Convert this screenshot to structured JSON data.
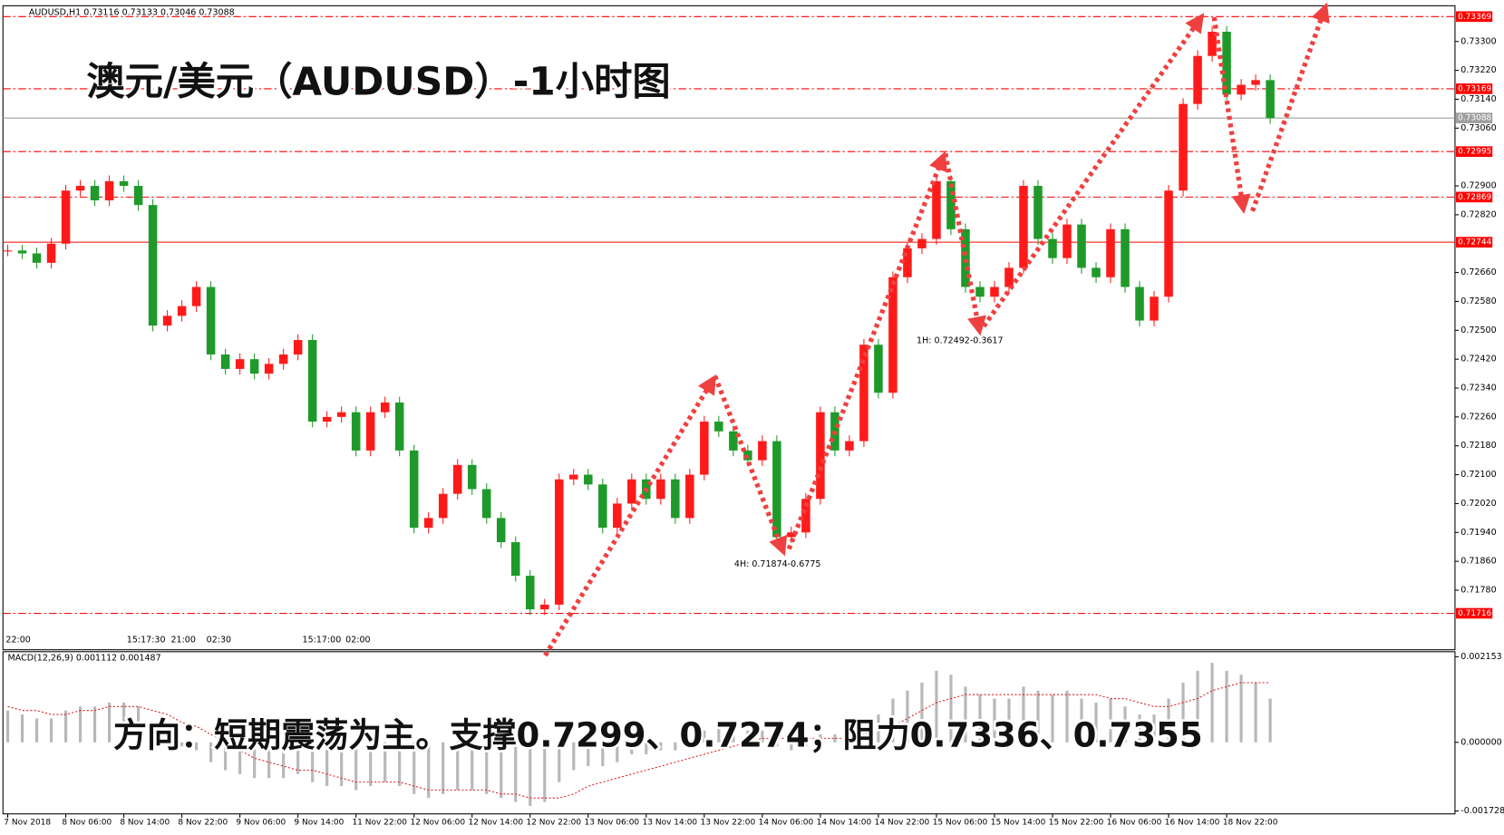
{
  "chart_data": {
    "type": "candlestick",
    "header": "AUDUSD,H1  0.73116 0.73133 0.73046 0.73088",
    "title": "澳元/美元（AUDUSD）-1小时图",
    "subtitle": "方向：短期震荡为主。支撑0.7299、0.7274；阻力0.7336、0.7355",
    "annotations": [
      "1H: 0.72492-0.3617",
      "4H: 0.71874-0.6775"
    ],
    "time_markers": [
      "22:00",
      "15:17:30",
      "21:00",
      "02:30",
      "15:17:00",
      "02:00"
    ],
    "up_color": "#ff1a1a",
    "down_color": "#1f9a2a",
    "categories": [
      "7 Nov 2018",
      null,
      null,
      null,
      "8 Nov 06:00",
      null,
      null,
      null,
      "8 Nov 14:00",
      null,
      null,
      null,
      "8 Nov 22:00",
      null,
      null,
      null,
      "9 Nov 06:00",
      null,
      null,
      null,
      "9 Nov 14:00",
      null,
      null,
      null,
      "11 Nov 22:00",
      null,
      null,
      null,
      "12 Nov 06:00",
      null,
      null,
      null,
      "12 Nov 14:00",
      null,
      null,
      null,
      "12 Nov 22:00",
      null,
      null,
      null,
      "13 Nov 06:00",
      null,
      null,
      null,
      "13 Nov 14:00",
      null,
      null,
      null,
      "13 Nov 22:00",
      null,
      null,
      null,
      "14 Nov 06:00",
      null,
      null,
      null,
      "14 Nov 14:00",
      null,
      null,
      null,
      "14 Nov 22:00",
      null,
      null,
      null,
      "15 Nov 06:00",
      null,
      null,
      null,
      "15 Nov 14:00",
      null,
      null,
      null,
      "15 Nov 22:00",
      null,
      null,
      null,
      "16 Nov 06:00",
      null,
      null,
      null,
      "16 Nov 14:00",
      null,
      null,
      null,
      "18 Nov 22:00",
      null,
      null,
      null
    ],
    "close": [
      0.72721,
      0.72713,
      0.72687,
      0.7274,
      0.72887,
      0.729,
      0.7286,
      0.72913,
      0.729,
      0.72847,
      0.72513,
      0.7254,
      0.72567,
      0.7262,
      0.72433,
      0.72393,
      0.7242,
      0.7238,
      0.72407,
      0.72433,
      0.72473,
      0.72247,
      0.7226,
      0.72273,
      0.72167,
      0.72273,
      0.723,
      0.72167,
      0.71953,
      0.7198,
      0.72047,
      0.72127,
      0.7206,
      0.7198,
      0.71913,
      0.7182,
      0.71727,
      0.7174,
      0.72087,
      0.721,
      0.72073,
      0.71953,
      0.7202,
      0.72087,
      0.72033,
      0.72087,
      0.7198,
      0.721,
      0.72247,
      0.7222,
      0.72167,
      0.7214,
      0.72193,
      0.71927,
      0.7194,
      0.72033,
      0.72273,
      0.72167,
      0.72193,
      0.7246,
      0.72327,
      0.72647,
      0.72727,
      0.72753,
      0.72913,
      0.7278,
      0.7262,
      0.72593,
      0.7262,
      0.72673,
      0.729,
      0.72753,
      0.727,
      0.72793,
      0.72673,
      0.72647,
      0.7278,
      0.7262,
      0.72527,
      0.72593,
      0.72887,
      0.73127,
      0.7326,
      0.73327,
      0.73153,
      0.7318,
      0.73193,
      0.73088
    ],
    "ylim": [
      0.71615,
      0.73399
    ],
    "yticks": [
      {
        "value": 0.733,
        "label": "0.73300"
      },
      {
        "value": 0.7322,
        "label": "0.73220"
      },
      {
        "value": 0.7314,
        "label": "0.73140"
      },
      {
        "value": 0.7306,
        "label": "0.73060"
      },
      {
        "value": 0.729,
        "label": "0.72900"
      },
      {
        "value": 0.7282,
        "label": "0.72820"
      },
      {
        "value": 0.7266,
        "label": "0.72660"
      },
      {
        "value": 0.7258,
        "label": "0.72580"
      },
      {
        "value": 0.725,
        "label": "0.72500"
      },
      {
        "value": 0.7242,
        "label": "0.72420"
      },
      {
        "value": 0.7234,
        "label": "0.72340"
      },
      {
        "value": 0.7226,
        "label": "0.72260"
      },
      {
        "value": 0.7218,
        "label": "0.72180"
      },
      {
        "value": 0.721,
        "label": "0.72100"
      },
      {
        "value": 0.7202,
        "label": "0.72020"
      },
      {
        "value": 0.7194,
        "label": "0.71940"
      },
      {
        "value": 0.7186,
        "label": "0.71860"
      },
      {
        "value": 0.7178,
        "label": "0.71780"
      }
    ],
    "levels": [
      {
        "value": 0.73369,
        "style": "dashdot",
        "color": "#ff0000"
      },
      {
        "value": 0.73169,
        "style": "dashdot",
        "color": "#ff0000"
      },
      {
        "value": 0.73088,
        "style": "solid",
        "color": "#a0a0a0"
      },
      {
        "value": 0.72995,
        "style": "dashdot",
        "color": "#ff0000"
      },
      {
        "value": 0.72869,
        "style": "dashdot",
        "color": "#ff0000"
      },
      {
        "value": 0.72744,
        "style": "solid",
        "color": "#ff0000"
      },
      {
        "value": 0.71716,
        "style": "dashdot",
        "color": "#ff0000"
      }
    ],
    "indicator": {
      "title": "MACD(12,26,9) 0.001112 0.001487",
      "hist_color": "#b8b8b8",
      "signal_color": "#e02020",
      "macd": [
        0.0008,
        0.0007,
        0.0006,
        0.0006,
        0.0008,
        0.0009,
        0.0009,
        0.001,
        0.001,
        0.0009,
        0.0004,
        0.0001,
        -0.0001,
        -0.0002,
        -0.0005,
        -0.0007,
        -0.0008,
        -0.0009,
        -0.0009,
        -0.0009,
        -0.0008,
        -0.001,
        -0.0011,
        -0.0011,
        -0.0012,
        -0.0011,
        -0.001,
        -0.0011,
        -0.0013,
        -0.0014,
        -0.0013,
        -0.0012,
        -0.0012,
        -0.0013,
        -0.0014,
        -0.0015,
        -0.0016,
        -0.0015,
        -0.001,
        -0.0007,
        -0.0006,
        -0.0006,
        -0.0005,
        -0.0003,
        -0.0003,
        -0.0002,
        -0.0002,
        0,
        0.0003,
        0.0004,
        0.0003,
        0.0003,
        0.0003,
        -0.0001,
        -0.0002,
        -0.0001,
        0.0002,
        0.0002,
        0.0003,
        0.0006,
        0.0007,
        0.0011,
        0.0013,
        0.0015,
        0.0018,
        0.0017,
        0.0014,
        0.0012,
        0.0011,
        0.0011,
        0.0014,
        0.0013,
        0.0012,
        0.0013,
        0.0011,
        0.001,
        0.0011,
        0.0009,
        0.0007,
        0.0007,
        0.0011,
        0.0015,
        0.0018,
        0.002,
        0.0018,
        0.0017,
        0.0015,
        0.0011
      ],
      "signal": [
        0.0009,
        0.0008,
        0.0008,
        0.0007,
        0.0007,
        0.0008,
        0.0008,
        0.0009,
        0.0009,
        0.0009,
        0.0008,
        0.0007,
        0.0005,
        0.0004,
        0.0002,
        0,
        -0.0002,
        -0.0004,
        -0.0005,
        -0.0006,
        -0.0007,
        -0.0007,
        -0.0008,
        -0.0009,
        -0.001,
        -0.001,
        -0.001,
        -0.001,
        -0.0011,
        -0.0012,
        -0.0012,
        -0.0012,
        -0.0012,
        -0.0012,
        -0.0013,
        -0.0013,
        -0.0014,
        -0.0014,
        -0.0014,
        -0.0013,
        -0.0011,
        -0.001,
        -0.0009,
        -0.0008,
        -0.0007,
        -0.0006,
        -0.0005,
        -0.0004,
        -0.0003,
        -0.0002,
        -0.0001,
        0,
        0.0001,
        0.0001,
        0.0001,
        0.0001,
        0.0001,
        0.0001,
        0.0001,
        0.0002,
        0.0003,
        0.0004,
        0.0006,
        0.0008,
        0.001,
        0.0011,
        0.0012,
        0.0012,
        0.0012,
        0.0012,
        0.0012,
        0.0012,
        0.0012,
        0.0012,
        0.0012,
        0.0012,
        0.0011,
        0.0011,
        0.001,
        0.0009,
        0.0009,
        0.001,
        0.0011,
        0.0013,
        0.0014,
        0.0015,
        0.0015,
        0.0015
      ],
      "ylim": [
        -0.0018,
        0.00228
      ],
      "yticks": [
        0.002153,
        {
          "value": 0,
          "label": "0.000000"
        },
        -0.001728
      ]
    }
  }
}
